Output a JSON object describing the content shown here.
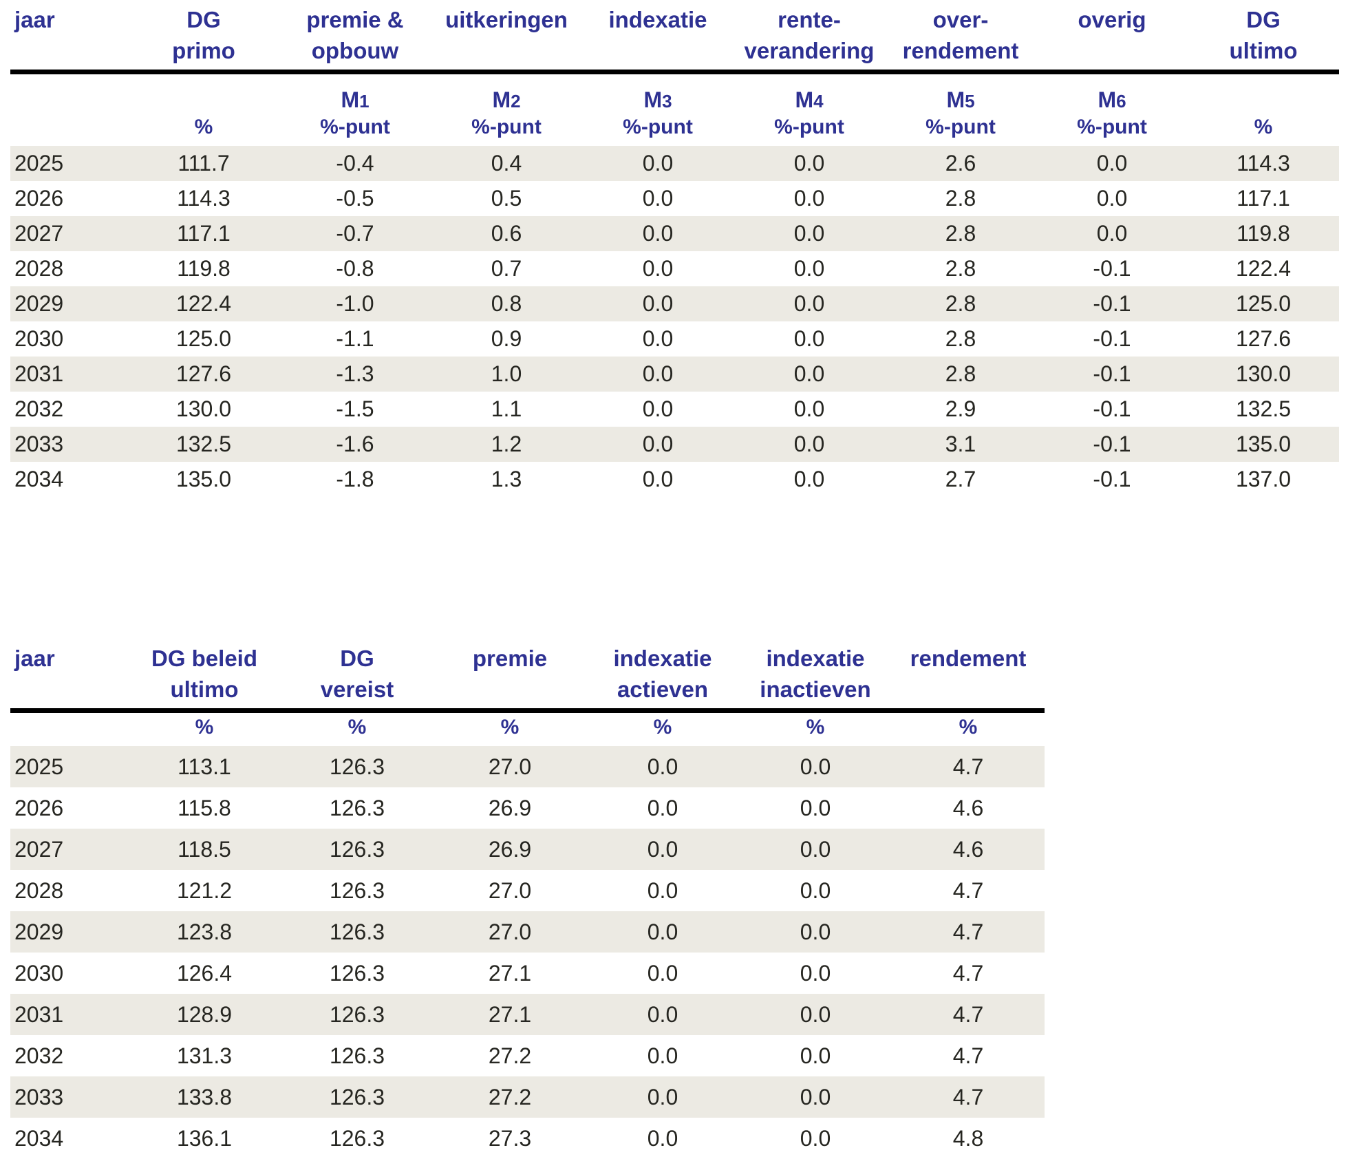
{
  "colors": {
    "header_blue": "#2E3192",
    "row_stripe": "#ECEAE3",
    "text_ink": "#262621",
    "header_rule": "#000000"
  },
  "table1": {
    "columns": [
      {
        "key": "jaar",
        "label_lines": [
          "jaar",
          ""
        ],
        "m": "",
        "unit": ""
      },
      {
        "key": "dg-primo",
        "label_lines": [
          "DG",
          "primo"
        ],
        "m": "",
        "unit": "%"
      },
      {
        "key": "premie-opbouw",
        "label_lines": [
          "premie &",
          "opbouw"
        ],
        "m": "M1",
        "unit": "%-punt"
      },
      {
        "key": "uitkeringen",
        "label_lines": [
          "uitkeringen",
          ""
        ],
        "m": "M2",
        "unit": "%-punt"
      },
      {
        "key": "indexatie",
        "label_lines": [
          "indexatie",
          ""
        ],
        "m": "M3",
        "unit": "%-punt"
      },
      {
        "key": "rente-verandering",
        "label_lines": [
          "rente-",
          "verandering"
        ],
        "m": "M4",
        "unit": "%-punt"
      },
      {
        "key": "over-rendement",
        "label_lines": [
          "over-",
          "rendement"
        ],
        "m": "M5",
        "unit": "%-punt"
      },
      {
        "key": "overig",
        "label_lines": [
          "overig",
          ""
        ],
        "m": "M6",
        "unit": "%-punt"
      },
      {
        "key": "dg-ultimo",
        "label_lines": [
          "DG",
          "ultimo"
        ],
        "m": "",
        "unit": "%"
      }
    ],
    "rows": [
      [
        "2025",
        "111.7",
        "-0.4",
        "0.4",
        "0.0",
        "0.0",
        "2.6",
        "0.0",
        "114.3"
      ],
      [
        "2026",
        "114.3",
        "-0.5",
        "0.5",
        "0.0",
        "0.0",
        "2.8",
        "0.0",
        "117.1"
      ],
      [
        "2027",
        "117.1",
        "-0.7",
        "0.6",
        "0.0",
        "0.0",
        "2.8",
        "0.0",
        "119.8"
      ],
      [
        "2028",
        "119.8",
        "-0.8",
        "0.7",
        "0.0",
        "0.0",
        "2.8",
        "-0.1",
        "122.4"
      ],
      [
        "2029",
        "122.4",
        "-1.0",
        "0.8",
        "0.0",
        "0.0",
        "2.8",
        "-0.1",
        "125.0"
      ],
      [
        "2030",
        "125.0",
        "-1.1",
        "0.9",
        "0.0",
        "0.0",
        "2.8",
        "-0.1",
        "127.6"
      ],
      [
        "2031",
        "127.6",
        "-1.3",
        "1.0",
        "0.0",
        "0.0",
        "2.8",
        "-0.1",
        "130.0"
      ],
      [
        "2032",
        "130.0",
        "-1.5",
        "1.1",
        "0.0",
        "0.0",
        "2.9",
        "-0.1",
        "132.5"
      ],
      [
        "2033",
        "132.5",
        "-1.6",
        "1.2",
        "0.0",
        "0.0",
        "3.1",
        "-0.1",
        "135.0"
      ],
      [
        "2034",
        "135.0",
        "-1.8",
        "1.3",
        "0.0",
        "0.0",
        "2.7",
        "-0.1",
        "137.0"
      ]
    ]
  },
  "table2": {
    "columns": [
      {
        "key": "jaar",
        "label_lines": [
          "jaar",
          ""
        ],
        "m": "",
        "unit": ""
      },
      {
        "key": "dg-beleid-ultimo",
        "label_lines": [
          "DG beleid",
          "ultimo"
        ],
        "m": "",
        "unit": "%"
      },
      {
        "key": "dg-vereist",
        "label_lines": [
          "DG",
          "vereist"
        ],
        "m": "",
        "unit": "%"
      },
      {
        "key": "premie",
        "label_lines": [
          "premie",
          ""
        ],
        "m": "",
        "unit": "%"
      },
      {
        "key": "indexatie-actieven",
        "label_lines": [
          "indexatie",
          "actieven"
        ],
        "m": "",
        "unit": "%"
      },
      {
        "key": "indexatie-inactieven",
        "label_lines": [
          "indexatie",
          "inactieven"
        ],
        "m": "",
        "unit": "%"
      },
      {
        "key": "rendement",
        "label_lines": [
          "rendement",
          ""
        ],
        "m": "",
        "unit": "%"
      }
    ],
    "rows": [
      [
        "2025",
        "113.1",
        "126.3",
        "27.0",
        "0.0",
        "0.0",
        "4.7"
      ],
      [
        "2026",
        "115.8",
        "126.3",
        "26.9",
        "0.0",
        "0.0",
        "4.6"
      ],
      [
        "2027",
        "118.5",
        "126.3",
        "26.9",
        "0.0",
        "0.0",
        "4.6"
      ],
      [
        "2028",
        "121.2",
        "126.3",
        "27.0",
        "0.0",
        "0.0",
        "4.7"
      ],
      [
        "2029",
        "123.8",
        "126.3",
        "27.0",
        "0.0",
        "0.0",
        "4.7"
      ],
      [
        "2030",
        "126.4",
        "126.3",
        "27.1",
        "0.0",
        "0.0",
        "4.7"
      ],
      [
        "2031",
        "128.9",
        "126.3",
        "27.1",
        "0.0",
        "0.0",
        "4.7"
      ],
      [
        "2032",
        "131.3",
        "126.3",
        "27.2",
        "0.0",
        "0.0",
        "4.7"
      ],
      [
        "2033",
        "133.8",
        "126.3",
        "27.2",
        "0.0",
        "0.0",
        "4.7"
      ],
      [
        "2034",
        "136.1",
        "126.3",
        "27.3",
        "0.0",
        "0.0",
        "4.8"
      ]
    ]
  }
}
